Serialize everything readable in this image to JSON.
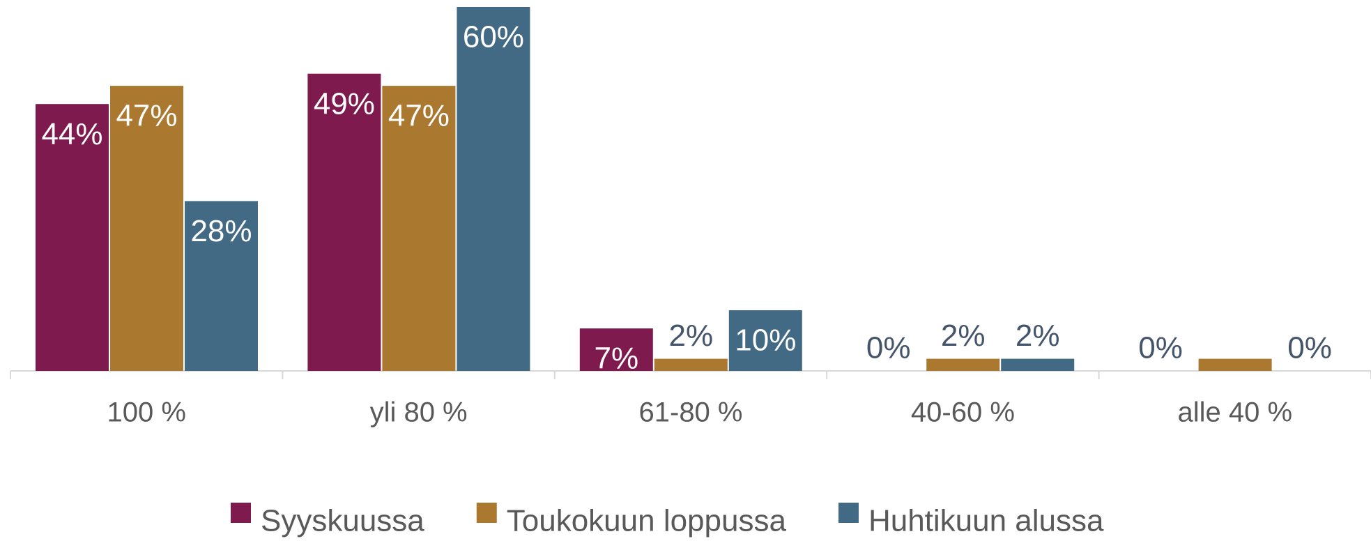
{
  "chart_data": {
    "type": "bar",
    "categories": [
      "100 %",
      "yli 80 %",
      "61-80 %",
      "40-60 %",
      "alle 40 %"
    ],
    "series": [
      {
        "name": "Syyskuussa",
        "color": "#7f1a4e",
        "values": [
          44,
          49,
          7,
          0,
          0
        ],
        "value_labels": [
          "44%",
          "49%",
          "7%",
          "0%",
          "0%"
        ]
      },
      {
        "name": "Toukokuun loppussa",
        "color": "#ab7830",
        "values": [
          47,
          47,
          2,
          2,
          2
        ],
        "value_labels": [
          "47%",
          "47%",
          "2%",
          "2%",
          null
        ]
      },
      {
        "name": "Huhtikuun alussa",
        "color": "#436a84",
        "values": [
          28,
          60,
          10,
          2,
          0
        ],
        "value_labels": [
          "28%",
          "60%",
          "10%",
          "2%",
          "0%"
        ]
      }
    ],
    "legend": "bottom"
  }
}
